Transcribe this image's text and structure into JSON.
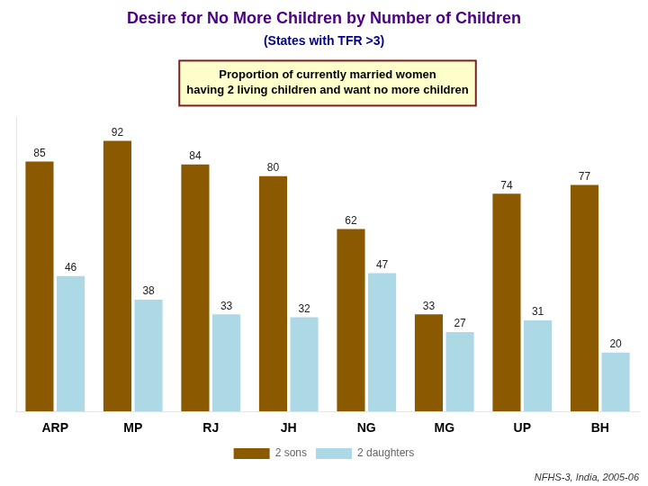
{
  "chart_data": {
    "type": "bar",
    "title": "Desire for No More Children by Number of Children",
    "subtitle": "(States with TFR >3)",
    "annotation": "Proportion of currently married women\nhaving 2 living children and want no more children",
    "footnote": "NFHS-3, India, 2005-06",
    "categories": [
      "ARP",
      "MP",
      "RJ",
      "JH",
      "NG",
      "MG",
      "UP",
      "BH"
    ],
    "series": [
      {
        "name": "2 sons",
        "color": "#8B5A00",
        "values": [
          85,
          92,
          84,
          80,
          62,
          33,
          74,
          77
        ]
      },
      {
        "name": "2 daughters",
        "color": "#ADD8E6",
        "values": [
          46,
          38,
          33,
          32,
          47,
          27,
          31,
          20
        ]
      }
    ],
    "ylim": [
      0,
      100
    ],
    "grid": false,
    "legend": "bottom",
    "data_labels": true,
    "tick_labels": "x"
  }
}
